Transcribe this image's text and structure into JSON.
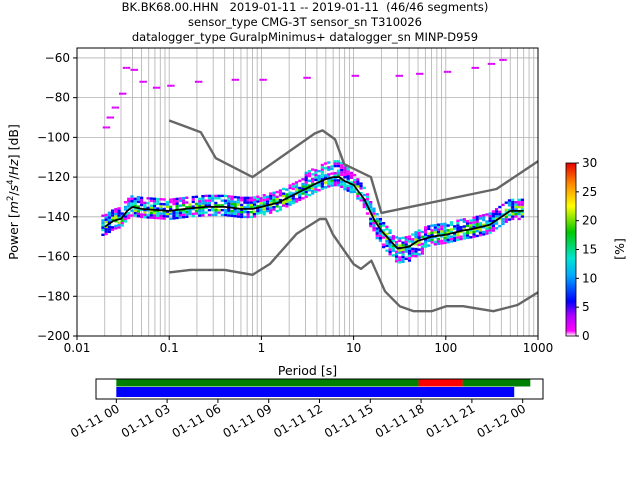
{
  "title_lines": [
    "BK.BK68.00.HHN   2019-01-11 -- 2019-01-11  (46/46 segments)",
    "sensor_type CMG-3T sensor_sn T310026",
    "datalogger_type GuralpMinimus+ datalogger_sn MINP-D959"
  ],
  "chart_data": [
    {
      "type": "heatmap",
      "xlabel": "Period [s]",
      "ylabel_parts": [
        "Power [",
        "m",
        "2",
        "/",
        "s",
        "4",
        "/",
        "Hz",
        "] [dB]"
      ],
      "x_scale": "log",
      "xlim": [
        0.01,
        1000
      ],
      "ylim": [
        -200,
        -55
      ],
      "x_ticks": [
        {
          "v": 0.01,
          "label": "0.01"
        },
        {
          "v": 0.1,
          "label": "0.1"
        },
        {
          "v": 1,
          "label": "1"
        },
        {
          "v": 10,
          "label": "10"
        },
        {
          "v": 100,
          "label": "100"
        },
        {
          "v": 1000,
          "label": "1000"
        }
      ],
      "y_ticks": [
        -200,
        -180,
        -160,
        -140,
        -120,
        -100,
        -80,
        -60
      ],
      "grid": true,
      "colorbar": {
        "label": "[%]",
        "min": 0,
        "max": 30,
        "ticks": [
          0,
          5,
          10,
          15,
          20,
          25,
          30
        ]
      },
      "series": [
        {
          "role": "new-high-noise-model",
          "color": "#666666",
          "x": [
            0.1,
            0.22,
            0.32,
            0.8,
            3.8,
            4.6,
            6.3,
            7.9,
            15.4,
            20,
            354.8,
            1000
          ],
          "y": [
            -91.5,
            -97.4,
            -110.5,
            -120,
            -98,
            -96.5,
            -101,
            -113.5,
            -120,
            -138,
            -126,
            -112
          ]
        },
        {
          "role": "new-low-noise-model",
          "color": "#666666",
          "x": [
            0.1,
            0.17,
            0.4,
            0.8,
            1.24,
            2.4,
            4.3,
            5,
            6,
            10,
            12,
            15.6,
            21.9,
            31.6,
            45,
            70,
            101,
            154,
            328,
            600,
            1000
          ],
          "y": [
            -168,
            -166.7,
            -166.7,
            -169.2,
            -163.7,
            -148.6,
            -141.1,
            -141.1,
            -149,
            -163.8,
            -166.2,
            -162.1,
            -177.5,
            -185,
            -187.5,
            -187.5,
            -185,
            -185,
            -187.5,
            -184.4,
            -178
          ]
        },
        {
          "role": "mode",
          "color": "#000000",
          "x": [
            0.02,
            0.025,
            0.03,
            0.035,
            0.04,
            0.05,
            0.07,
            0.1,
            0.15,
            0.25,
            0.4,
            0.6,
            0.8,
            1,
            1.5,
            2,
            3,
            4,
            5,
            6,
            7,
            8,
            10,
            13,
            17,
            20,
            25,
            30,
            40,
            50,
            70,
            100,
            150,
            200,
            300,
            500,
            700
          ],
          "y": [
            -145,
            -142,
            -141,
            -137,
            -135,
            -136,
            -136.5,
            -137,
            -136,
            -135,
            -135,
            -136,
            -136,
            -135,
            -133,
            -130,
            -126,
            -123,
            -121,
            -120,
            -120,
            -122,
            -124,
            -131,
            -142,
            -147,
            -152,
            -156,
            -155,
            -152,
            -150,
            -149,
            -147,
            -146,
            -144,
            -137,
            -137
          ]
        }
      ]
    },
    {
      "type": "bar",
      "role": "data-availability",
      "x_ticks": [
        "01-11 00",
        "01-11 03",
        "01-11 06",
        "01-11 09",
        "01-11 12",
        "01-11 15",
        "01-11 18",
        "01-11 21",
        "01-12 00"
      ],
      "x_range_hours": [
        -1.2,
        25.2
      ],
      "rows": [
        {
          "color": "#008000",
          "segments": [
            [
              0,
              17.85
            ],
            [
              20.45,
              24.45
            ]
          ]
        },
        {
          "color": "#ff0000",
          "segments": [
            [
              17.85,
              20.45
            ]
          ]
        },
        {
          "color": "#0000ff",
          "segments": [
            [
              0,
              23.5
            ]
          ]
        }
      ]
    }
  ]
}
